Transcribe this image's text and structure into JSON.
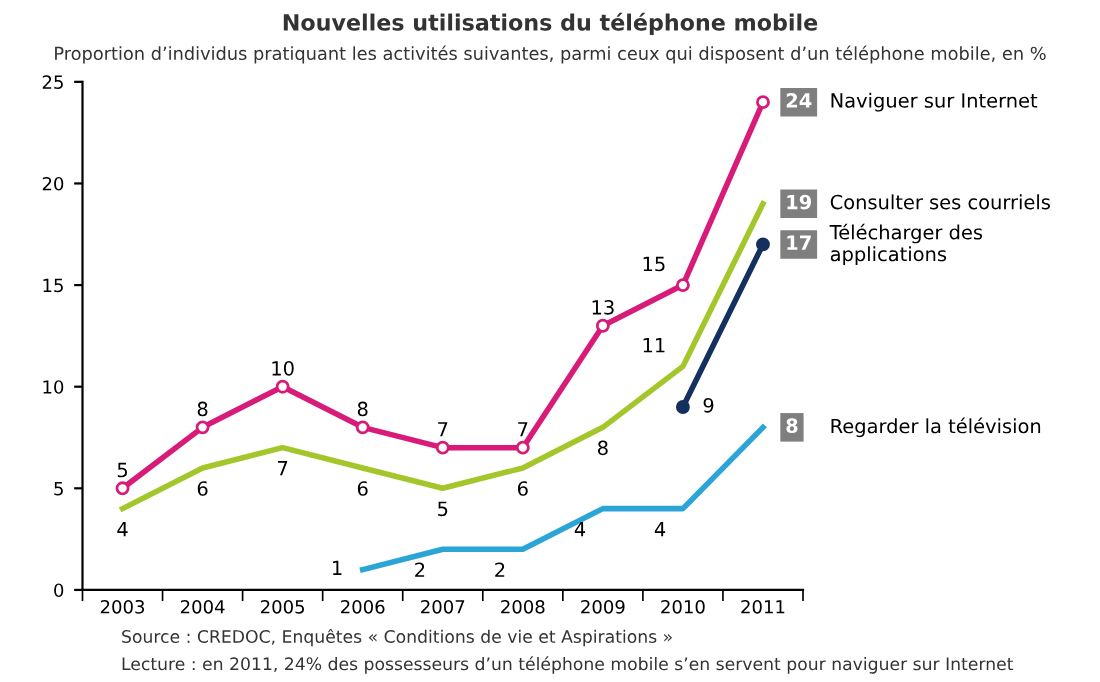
{
  "chart_data": {
    "type": "line",
    "title": "Nouvelles utilisations du téléphone mobile",
    "subtitle": "Proportion d’individus pratiquant les activités suivantes, parmi ceux qui disposent d’un téléphone mobile, en %",
    "categories": [
      "2003",
      "2004",
      "2005",
      "2006",
      "2007",
      "2008",
      "2009",
      "2010",
      "2011"
    ],
    "series": [
      {
        "name": "Naviguer sur Internet",
        "color": "#d81b78",
        "marker": "circle",
        "values": [
          5,
          8,
          10,
          8,
          7,
          7,
          13,
          15,
          24
        ]
      },
      {
        "name": "Consulter ses courriels",
        "color": "#a3c72a",
        "marker": "none",
        "values": [
          4,
          6,
          7,
          6,
          5,
          6,
          8,
          11,
          19
        ]
      },
      {
        "name": "Télécharger des applications",
        "color": "#14305e",
        "marker": "circle",
        "values": [
          null,
          null,
          null,
          null,
          null,
          null,
          null,
          9,
          17
        ]
      },
      {
        "name": "Regarder la télévision",
        "color": "#2aa5d6",
        "marker": "none",
        "values": [
          null,
          null,
          null,
          1,
          2,
          2,
          4,
          4,
          8
        ]
      }
    ],
    "ylim": [
      0,
      25
    ],
    "yticks": [
      0,
      5,
      10,
      15,
      20,
      25
    ],
    "grid": false,
    "legend": false,
    "data_labels": true,
    "annotations": [
      "Source : CREDOC, Enquêtes « Conditions de vie et Aspirations »",
      "Lecture : en 2011, 24% des possesseurs d’un téléphone mobile s’en servent pour naviguer sur Internet"
    ]
  }
}
